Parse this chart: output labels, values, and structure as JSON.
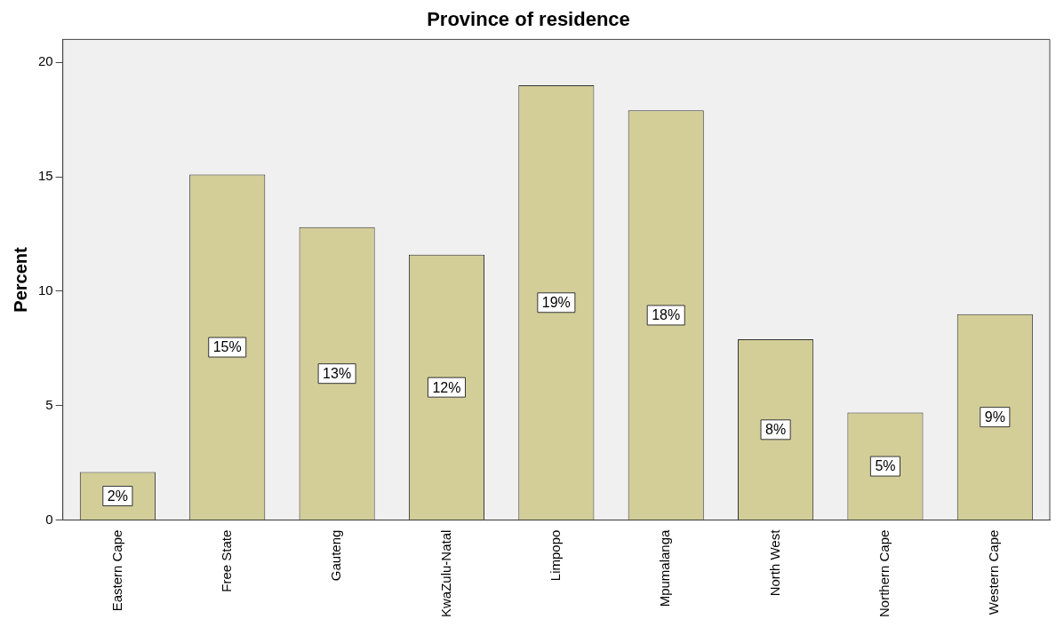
{
  "chart_data": {
    "type": "bar",
    "title": "Province of residence",
    "ylabel": "Percent",
    "categories": [
      "Eastern Cape",
      "Free State",
      "Gauteng",
      "KwaZulu-Natal",
      "Limpopo",
      "Mpumalanga",
      "North West",
      "Northern Cape",
      "Western Cape"
    ],
    "values": [
      2.1,
      15.1,
      12.8,
      11.6,
      19.0,
      17.9,
      7.9,
      4.7,
      9.0
    ],
    "value_labels": [
      "2%",
      "15%",
      "13%",
      "12%",
      "19%",
      "18%",
      "8%",
      "5%",
      "9%"
    ],
    "color": "#d3ce98",
    "ylim": [
      0,
      21
    ],
    "yticks": [
      0,
      5,
      10,
      15,
      20
    ],
    "grid": false,
    "legend": false
  }
}
